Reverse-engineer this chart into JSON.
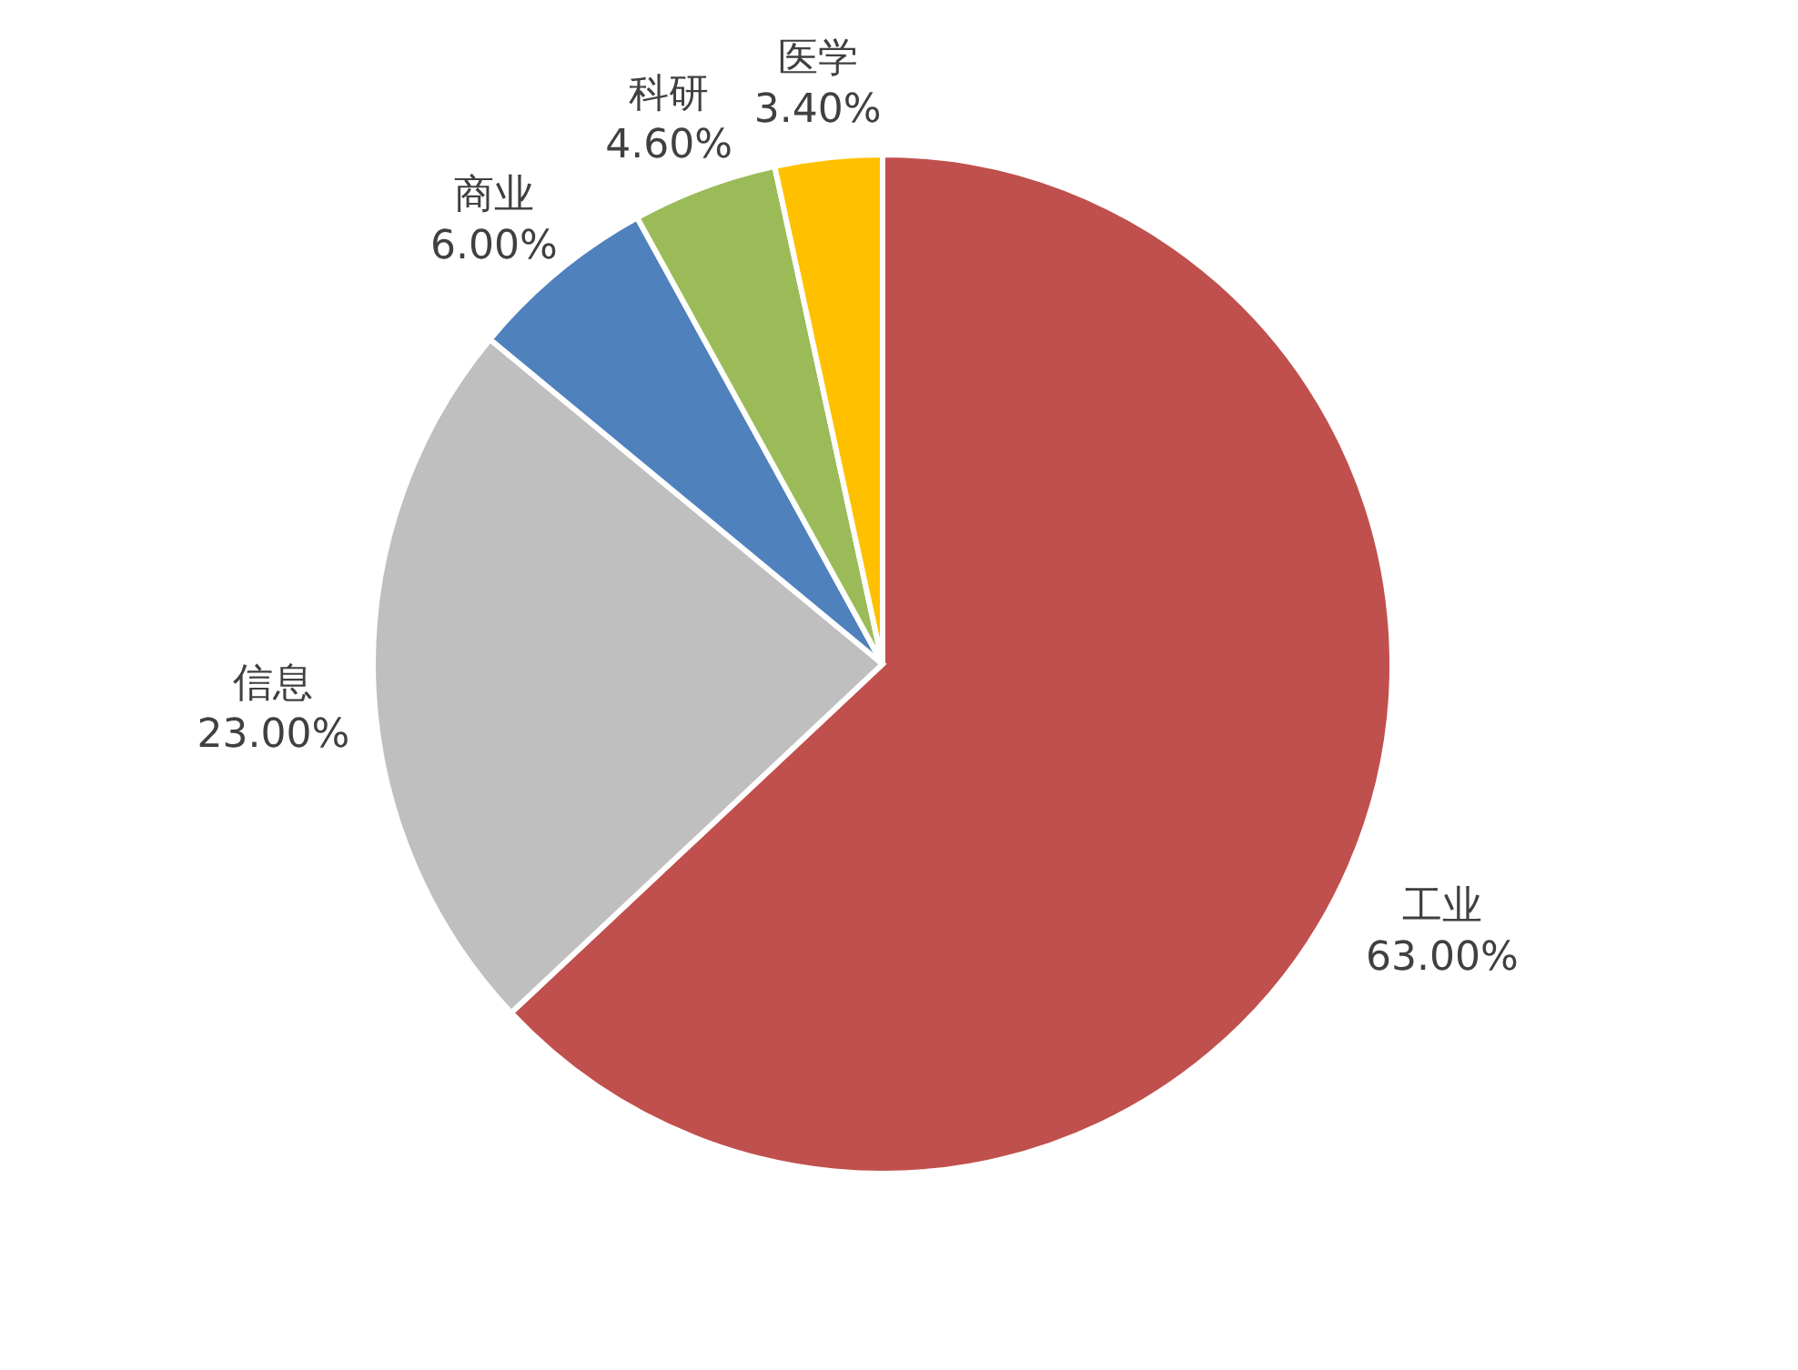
{
  "chart_data": {
    "type": "pie",
    "categories": [
      "工业",
      "信息",
      "商业",
      "科研",
      "医学"
    ],
    "values": [
      63,
      23,
      6,
      4.6,
      3.4
    ],
    "value_labels": [
      "63.00%",
      "23.00%",
      "6.00%",
      "4.60%",
      "3.40%"
    ],
    "colors": [
      "#c0504d",
      "#bfbfbf",
      "#4f81bd",
      "#9bbb59",
      "#ffc000"
    ]
  }
}
